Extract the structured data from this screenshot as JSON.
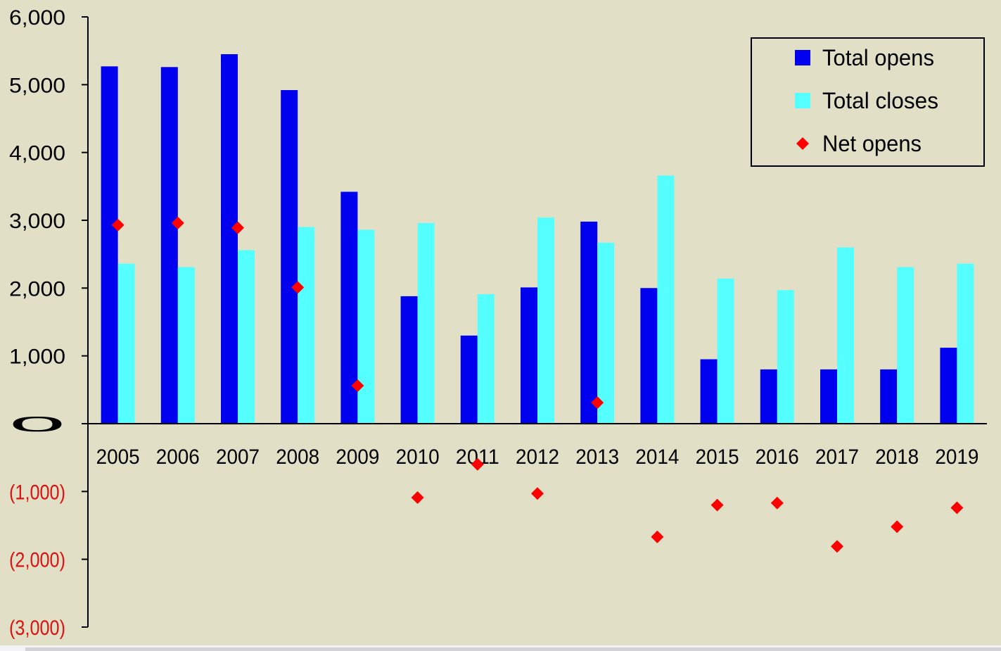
{
  "chart_data": {
    "type": "bar",
    "categories": [
      "2005",
      "2006",
      "2007",
      "2008",
      "2009",
      "2010",
      "2011",
      "2012",
      "2013",
      "2014",
      "2015",
      "2016",
      "2017",
      "2018",
      "2019"
    ],
    "series": [
      {
        "name": "Total opens",
        "kind": "bar",
        "color": "#0000ee",
        "values": [
          5270,
          5260,
          5450,
          4920,
          3420,
          1880,
          1300,
          2010,
          2980,
          2000,
          950,
          800,
          800,
          800,
          1120
        ]
      },
      {
        "name": "Total closes",
        "kind": "bar",
        "color": "#55ffff",
        "values": [
          2360,
          2310,
          2560,
          2900,
          2860,
          2960,
          1910,
          3040,
          2670,
          3660,
          2140,
          1970,
          2600,
          2310,
          2360
        ]
      },
      {
        "name": "Net opens",
        "kind": "scatter",
        "color": "#ff0000",
        "values": [
          2930,
          2960,
          2890,
          2010,
          560,
          -1090,
          -600,
          -1030,
          310,
          -1670,
          -1200,
          -1170,
          -1810,
          -1520,
          -1240
        ]
      }
    ],
    "ylim": [
      -3000,
      6000
    ],
    "yticks": [
      {
        "value": 6000,
        "label": "6,000"
      },
      {
        "value": 5000,
        "label": "5,000"
      },
      {
        "value": 4000,
        "label": "4,000"
      },
      {
        "value": 3000,
        "label": "3,000"
      },
      {
        "value": 2000,
        "label": "2,000"
      },
      {
        "value": 1000,
        "label": "1,000"
      },
      {
        "value": 0,
        "label": "0"
      },
      {
        "value": -1000,
        "label": "(1,000)"
      },
      {
        "value": -2000,
        "label": "(2,000)"
      },
      {
        "value": -3000,
        "label": "(3,000)"
      }
    ],
    "negative_tick_color": "#dd1111",
    "legend_position": "top-right",
    "grid": false
  }
}
